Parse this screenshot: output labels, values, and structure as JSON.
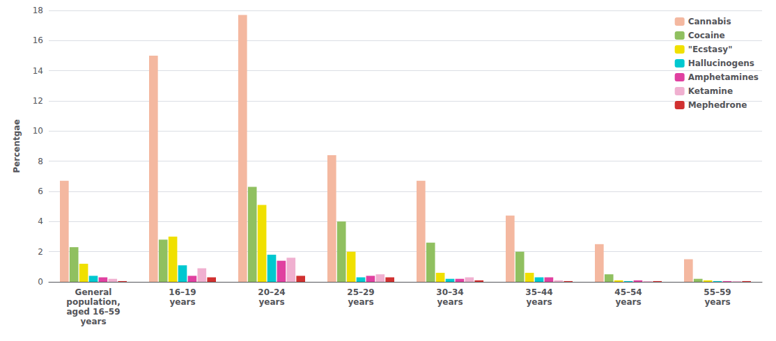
{
  "chart_data": {
    "type": "bar",
    "categories": [
      "General\npopulation,\naged 16–59\nyears",
      "16–19\nyears",
      "20–24\nyears",
      "25–29\nyears",
      "30–34\nyears",
      "35–44\nyears",
      "45–54\nyears",
      "55–59\nyears"
    ],
    "series": [
      {
        "name": "Cannabis",
        "color": "#f4b8a0",
        "values": [
          6.7,
          15.0,
          17.7,
          8.4,
          6.7,
          4.4,
          2.5,
          1.5
        ]
      },
      {
        "name": "Cocaine",
        "color": "#90c060",
        "values": [
          2.3,
          2.8,
          6.3,
          4.0,
          2.6,
          2.0,
          0.5,
          0.2
        ]
      },
      {
        "name": "\"Ecstasy\"",
        "color": "#f0e000",
        "values": [
          1.2,
          3.0,
          5.1,
          2.0,
          0.6,
          0.6,
          0.1,
          0.1
        ]
      },
      {
        "name": "Hallucinogens",
        "color": "#00c8d0",
        "values": [
          0.4,
          1.1,
          1.8,
          0.3,
          0.2,
          0.3,
          0.05,
          0.05
        ]
      },
      {
        "name": "Amphetamines",
        "color": "#e040a0",
        "values": [
          0.3,
          0.4,
          1.4,
          0.4,
          0.2,
          0.3,
          0.1,
          0.05
        ]
      },
      {
        "name": "Ketamine",
        "color": "#f0b0d0",
        "values": [
          0.2,
          0.9,
          1.6,
          0.5,
          0.3,
          0.1,
          0.05,
          0.05
        ]
      },
      {
        "name": "Mephedrone",
        "color": "#d03030",
        "values": [
          0.05,
          0.3,
          0.4,
          0.3,
          0.1,
          0.05,
          0.05,
          0.05
        ]
      }
    ],
    "ylabel": "Percentgae",
    "ylim": [
      0,
      18
    ],
    "yticks": [
      0,
      2,
      4,
      6,
      8,
      10,
      12,
      14,
      16,
      18
    ],
    "grid": true,
    "legend": "upper right"
  }
}
